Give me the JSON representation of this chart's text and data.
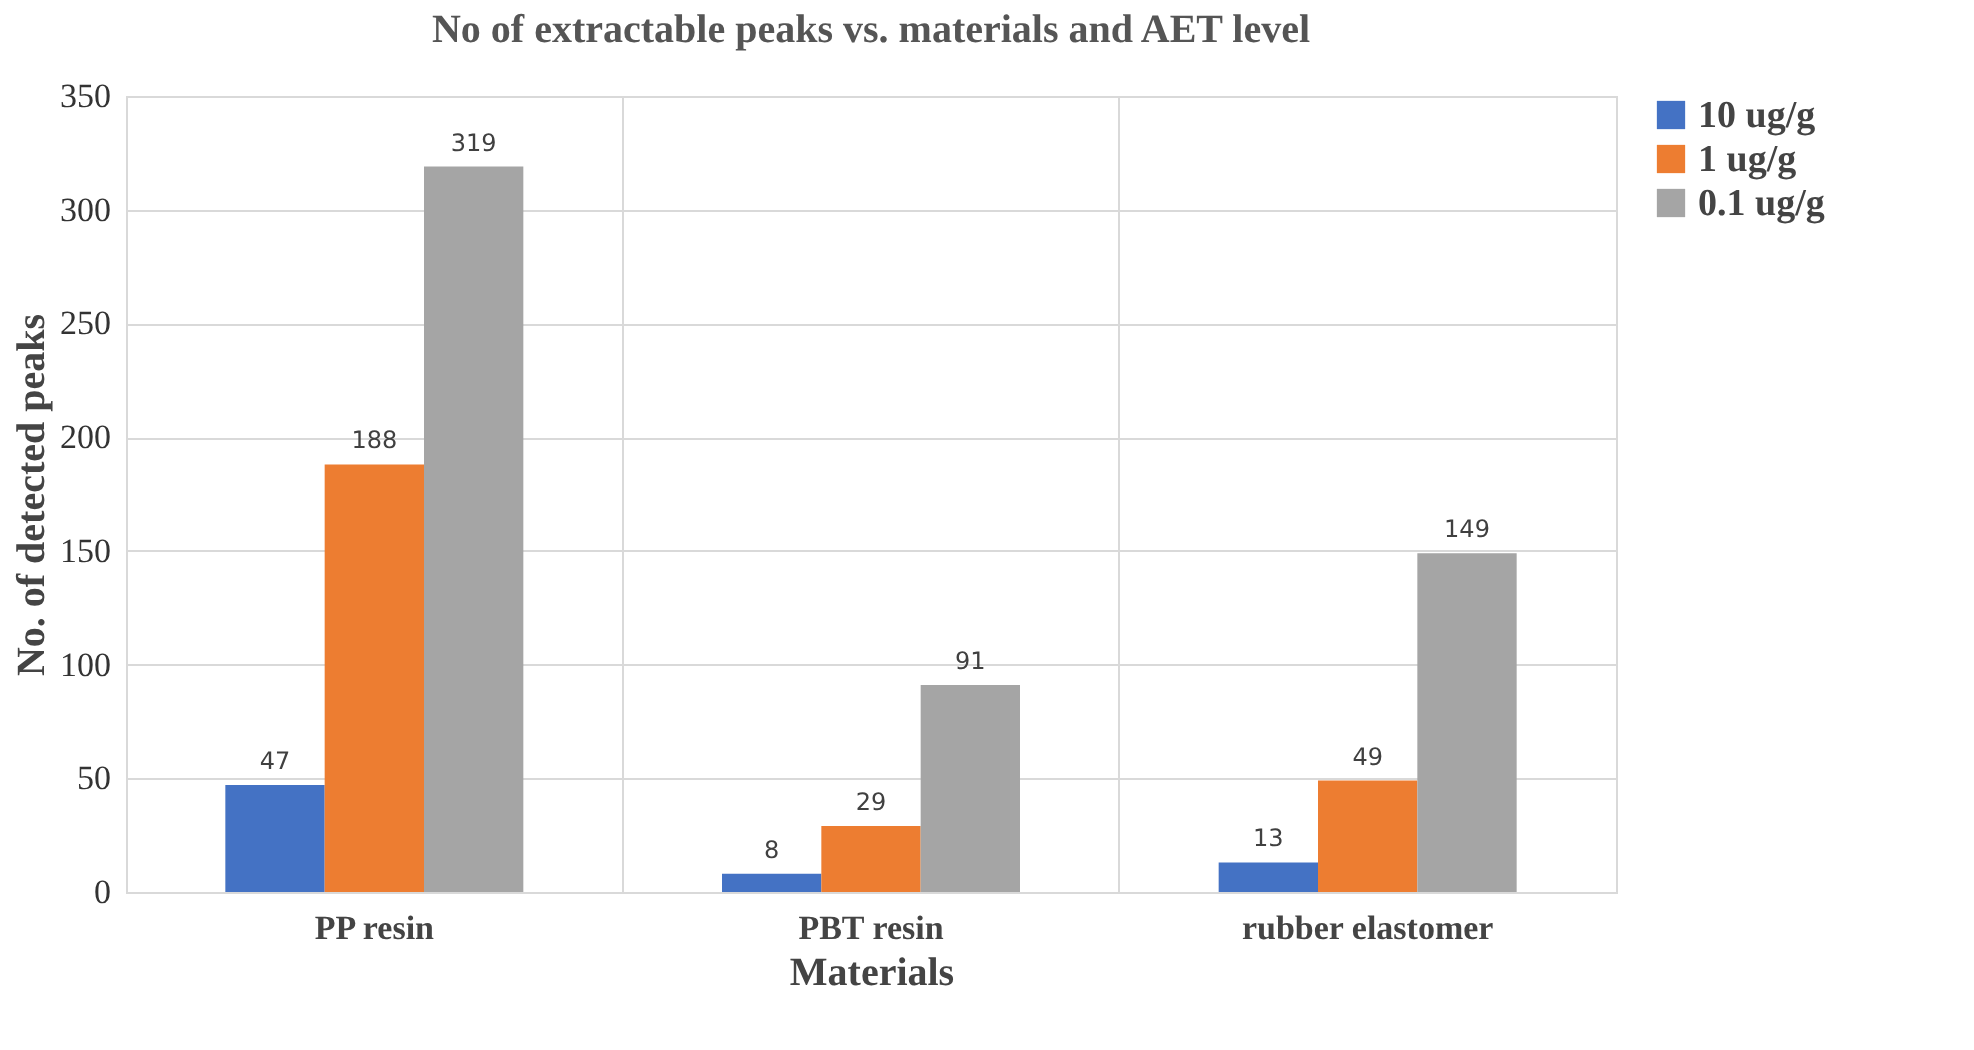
{
  "chart_data": {
    "type": "bar",
    "title": "No of extractable peaks vs. materials and AET level",
    "xlabel": "Materials",
    "ylabel": "No. of detected peaks",
    "categories": [
      "PP resin",
      "PBT resin",
      "rubber elastomer"
    ],
    "series": [
      {
        "name": "10 ug/g",
        "color": "#4472c4",
        "values": [
          47,
          8,
          13
        ]
      },
      {
        "name": "1 ug/g",
        "color": "#ed7d31",
        "values": [
          188,
          29,
          49
        ]
      },
      {
        "name": "0.1 ug/g",
        "color": "#a5a5a5",
        "values": [
          319,
          91,
          149
        ]
      }
    ],
    "ylim": [
      0,
      350
    ],
    "yticks": [
      0,
      50,
      100,
      150,
      200,
      250,
      300,
      350
    ],
    "grid": true,
    "legend": "right",
    "data_labels": true
  }
}
